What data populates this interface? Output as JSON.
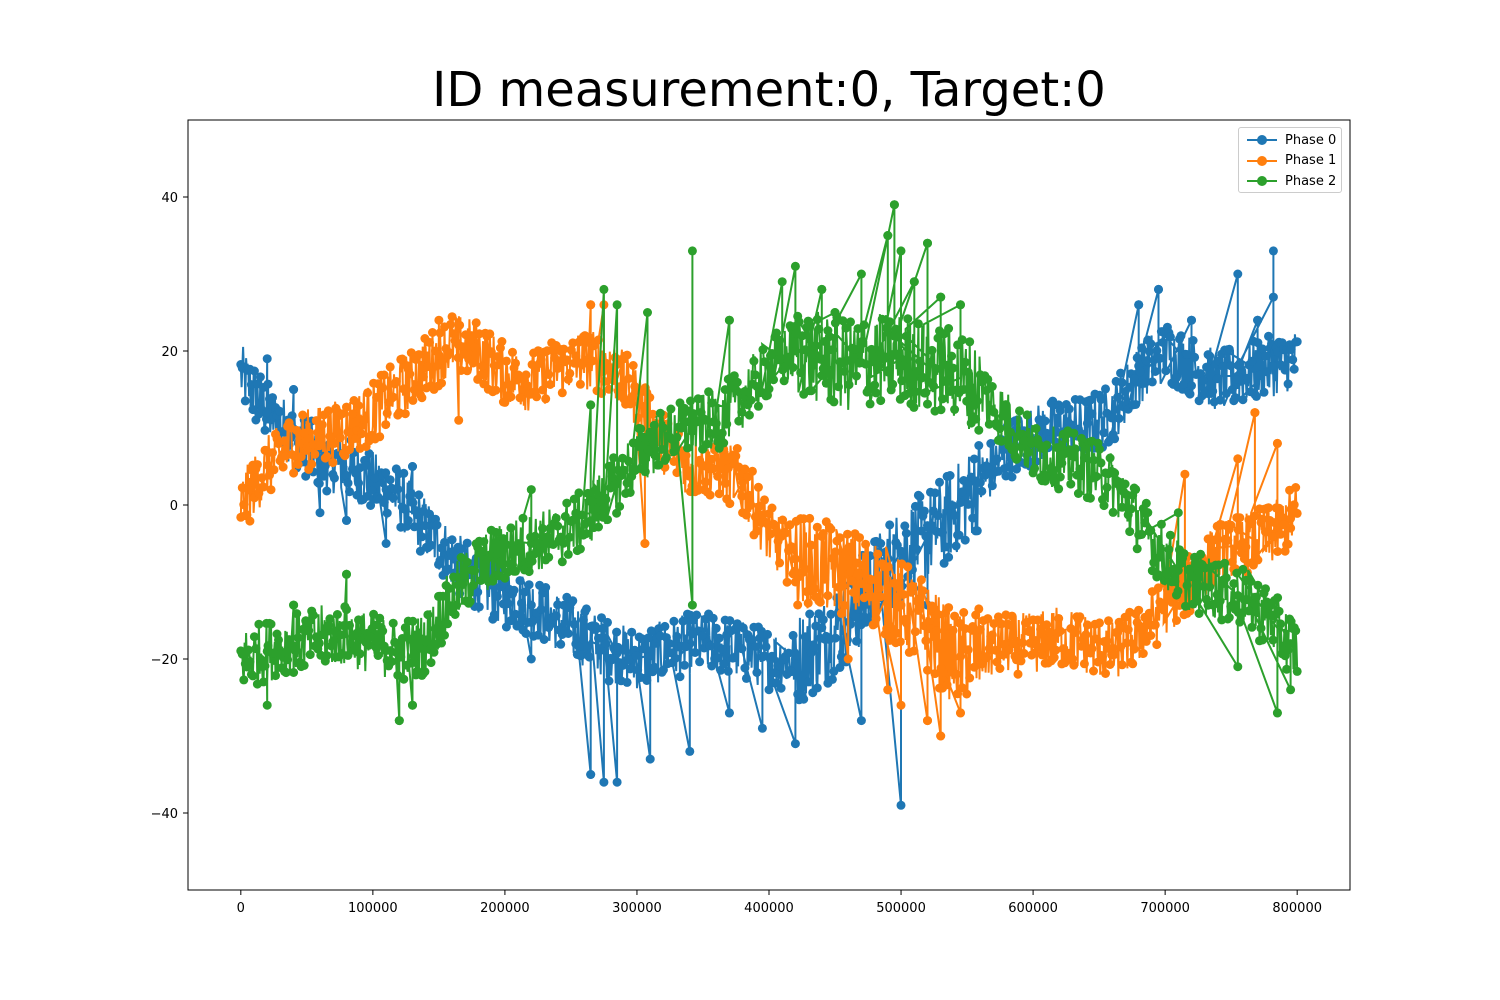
{
  "chart_data": {
    "type": "line",
    "title": "ID measurement:0, Target:0",
    "xlabel": "",
    "ylabel": "",
    "xlim": [
      -40000,
      840000
    ],
    "ylim": [
      -50,
      50
    ],
    "xticks": [
      0,
      100000,
      200000,
      300000,
      400000,
      500000,
      600000,
      700000,
      800000
    ],
    "yticks": [
      -40,
      -20,
      0,
      20,
      40
    ],
    "legend_position": "top-right",
    "grid": false,
    "markers": true,
    "series": [
      {
        "name": "Phase 0",
        "color": "#1f77b4",
        "x": [
          0,
          20000,
          40000,
          60000,
          80000,
          100000,
          120000,
          140000,
          160000,
          180000,
          200000,
          220000,
          240000,
          260000,
          280000,
          300000,
          320000,
          340000,
          360000,
          380000,
          400000,
          420000,
          440000,
          460000,
          480000,
          500000,
          520000,
          540000,
          560000,
          580000,
          600000,
          620000,
          640000,
          660000,
          680000,
          700000,
          720000,
          740000,
          760000,
          780000,
          800000
        ],
        "values": [
          17,
          12,
          9,
          6,
          5,
          3,
          1,
          -3,
          -7,
          -10,
          -12,
          -13,
          -15,
          -17,
          -19,
          -20,
          -19,
          -18,
          -18,
          -19,
          -20,
          -20,
          -18,
          -15,
          -10,
          -6,
          -4,
          -1,
          3,
          7,
          9,
          10,
          10,
          12,
          17,
          20,
          18,
          16,
          17,
          18,
          19
        ],
        "spikes": [
          [
            20000,
            19
          ],
          [
            40000,
            15
          ],
          [
            60000,
            -1
          ],
          [
            80000,
            -2
          ],
          [
            110000,
            -5
          ],
          [
            130000,
            5
          ],
          [
            220000,
            -20
          ],
          [
            265000,
            -35
          ],
          [
            275000,
            -36
          ],
          [
            285000,
            -36
          ],
          [
            310000,
            -33
          ],
          [
            340000,
            -32
          ],
          [
            370000,
            -27
          ],
          [
            395000,
            -29
          ],
          [
            420000,
            -31
          ],
          [
            470000,
            -28
          ],
          [
            500000,
            -39
          ],
          [
            520000,
            -13
          ],
          [
            680000,
            26
          ],
          [
            695000,
            28
          ],
          [
            720000,
            24
          ],
          [
            755000,
            30
          ],
          [
            770000,
            24
          ],
          [
            782000,
            33
          ],
          [
            782000,
            27
          ]
        ]
      },
      {
        "name": "Phase 1",
        "color": "#ff7f0e",
        "x": [
          0,
          20000,
          40000,
          60000,
          80000,
          100000,
          120000,
          140000,
          160000,
          180000,
          200000,
          220000,
          240000,
          260000,
          280000,
          300000,
          320000,
          340000,
          360000,
          380000,
          400000,
          420000,
          440000,
          460000,
          480000,
          500000,
          520000,
          540000,
          560000,
          580000,
          600000,
          620000,
          640000,
          660000,
          680000,
          700000,
          720000,
          740000,
          760000,
          780000,
          800000
        ],
        "values": [
          0,
          5,
          8,
          9,
          10,
          12,
          15,
          18,
          21,
          20,
          17,
          16,
          18,
          19,
          18,
          14,
          8,
          5,
          5,
          3,
          -4,
          -7,
          -8,
          -9,
          -10,
          -13,
          -16,
          -20,
          -19,
          -18,
          -18,
          -17,
          -18,
          -19,
          -17,
          -13,
          -10,
          -6,
          -5,
          -4,
          -1
        ],
        "spikes": [
          [
            150000,
            24
          ],
          [
            165000,
            11
          ],
          [
            265000,
            26
          ],
          [
            275000,
            26
          ],
          [
            290000,
            19
          ],
          [
            306000,
            -5
          ],
          [
            380000,
            -1
          ],
          [
            420000,
            -10
          ],
          [
            460000,
            -20
          ],
          [
            490000,
            -24
          ],
          [
            500000,
            -26
          ],
          [
            520000,
            -28
          ],
          [
            530000,
            -30
          ],
          [
            545000,
            -27
          ],
          [
            715000,
            4
          ],
          [
            755000,
            6
          ],
          [
            768000,
            12
          ],
          [
            785000,
            8
          ],
          [
            795000,
            -3
          ]
        ]
      },
      {
        "name": "Phase 2",
        "color": "#2ca02c",
        "x": [
          0,
          20000,
          40000,
          60000,
          80000,
          100000,
          120000,
          140000,
          160000,
          180000,
          200000,
          220000,
          240000,
          260000,
          280000,
          300000,
          320000,
          340000,
          360000,
          380000,
          400000,
          420000,
          440000,
          460000,
          480000,
          500000,
          520000,
          540000,
          560000,
          580000,
          600000,
          620000,
          640000,
          660000,
          680000,
          700000,
          720000,
          740000,
          760000,
          780000,
          800000
        ],
        "values": [
          -20,
          -19,
          -18,
          -17,
          -17,
          -18,
          -19,
          -18,
          -12,
          -8,
          -6,
          -5,
          -4,
          -2,
          2,
          6,
          9,
          10,
          11,
          14,
          18,
          20,
          19,
          18,
          19,
          19,
          18,
          17,
          15,
          11,
          7,
          6,
          5,
          3,
          -2,
          -7,
          -10,
          -11,
          -12,
          -15,
          -19
        ],
        "spikes": [
          [
            20000,
            -26
          ],
          [
            40000,
            -13
          ],
          [
            80000,
            -9
          ],
          [
            120000,
            -28
          ],
          [
            130000,
            -26
          ],
          [
            220000,
            2
          ],
          [
            265000,
            13
          ],
          [
            275000,
            28
          ],
          [
            285000,
            26
          ],
          [
            308000,
            25
          ],
          [
            342000,
            33
          ],
          [
            342000,
            -13
          ],
          [
            370000,
            24
          ],
          [
            410000,
            29
          ],
          [
            420000,
            31
          ],
          [
            440000,
            28
          ],
          [
            450000,
            25
          ],
          [
            470000,
            30
          ],
          [
            490000,
            35
          ],
          [
            495000,
            39
          ],
          [
            500000,
            33
          ],
          [
            510000,
            29
          ],
          [
            520000,
            34
          ],
          [
            530000,
            27
          ],
          [
            545000,
            26
          ],
          [
            710000,
            -1
          ],
          [
            755000,
            -21
          ],
          [
            785000,
            -27
          ],
          [
            795000,
            -24
          ]
        ]
      }
    ]
  }
}
